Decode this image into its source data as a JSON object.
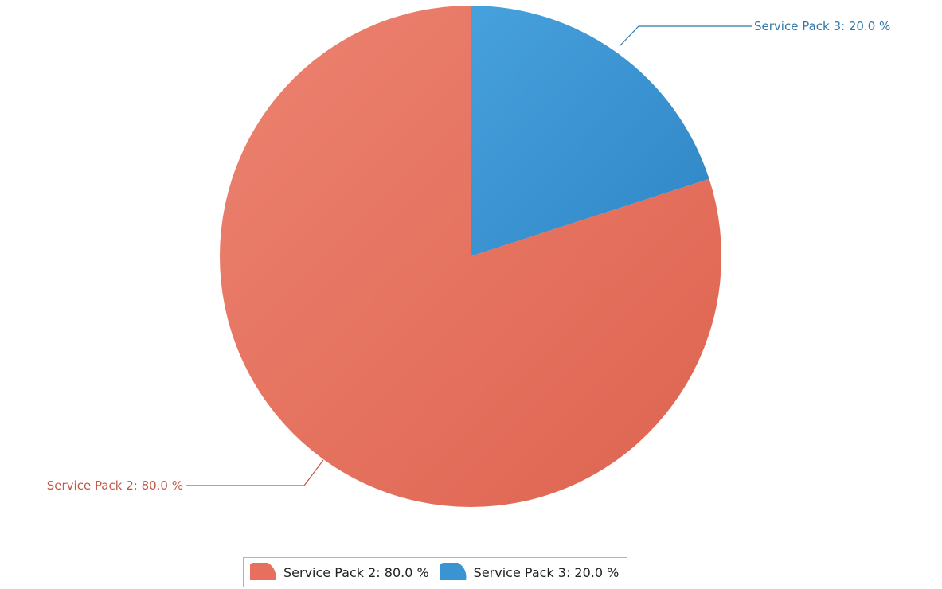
{
  "chart_data": {
    "type": "pie",
    "title": "",
    "slices": [
      {
        "label": "Service Pack 2: 80.0 %",
        "name": "Service Pack 2",
        "value": 80.0,
        "color": "#e6705d",
        "line_color": "#c0584a"
      },
      {
        "label": "Service Pack 3: 20.0 %",
        "name": "Service Pack 3",
        "value": 20.0,
        "color": "#3a94d2",
        "line_color": "#2f77aa"
      }
    ],
    "start_angle": "12 o'clock",
    "direction": "clockwise",
    "legend_placement": "bottom-center"
  },
  "legend": {
    "items": [
      {
        "label": "Service Pack 2: 80.0 %"
      },
      {
        "label": "Service Pack 3: 20.0 %"
      }
    ]
  }
}
